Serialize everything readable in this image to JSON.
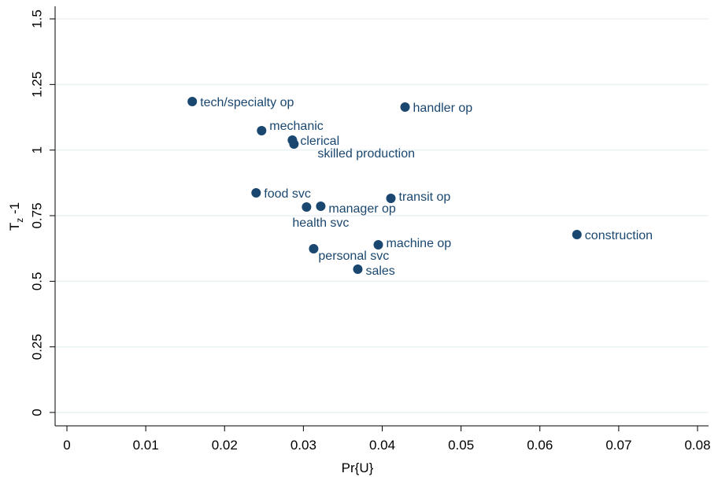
{
  "chart_data": {
    "type": "scatter",
    "xlabel": "Pr{U}",
    "ylabel_parts": [
      "T",
      "z",
      " -1"
    ],
    "color": "#1a476f",
    "grid": true,
    "xlim": [
      0,
      0.08
    ],
    "xticks": [
      0,
      0.01,
      0.02,
      0.03,
      0.04,
      0.05,
      0.06,
      0.07,
      0.08
    ],
    "ylim": [
      0,
      1.5
    ],
    "yticks": [
      0,
      0.25,
      0.5,
      0.75,
      1,
      1.25,
      1.5
    ],
    "labels": [
      "tech/specialty op",
      "handler op",
      "mechanic",
      "clerical",
      "skilled production",
      "food svc",
      "transit op",
      "health svc",
      "manager op",
      "construction",
      "machine op",
      "personal svc",
      "sales"
    ],
    "x": [
      0.0159,
      0.0429,
      0.0247,
      0.0286,
      0.0288,
      0.024,
      0.0411,
      0.0304,
      0.0322,
      0.0647,
      0.0395,
      0.0313,
      0.0369
    ],
    "y": [
      1.185,
      1.164,
      1.074,
      1.038,
      1.023,
      0.837,
      0.816,
      0.783,
      0.786,
      0.678,
      0.639,
      0.624,
      0.546
    ]
  }
}
